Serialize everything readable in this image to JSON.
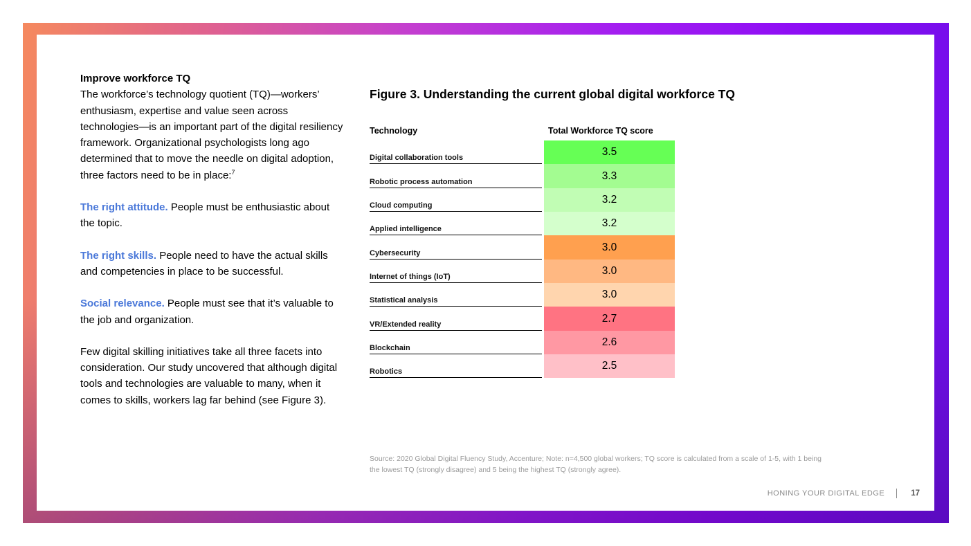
{
  "left": {
    "heading": "Improve workforce TQ",
    "intro": "The workforce’s technology quotient (TQ)—workers’ enthusiasm, expertise and value seen across technologies—is an important part of the digital resiliency framework. Organizational psychologists long ago determined that to move the needle on digital adoption, three factors need to be in place:",
    "intro_sup": "7",
    "factors": [
      {
        "lead": "The right attitude.",
        "text": " People must be enthusiastic about the topic."
      },
      {
        "lead": "The right skills.",
        "text": " People need to have the actual skills and competencies in place to be successful."
      },
      {
        "lead": "Social relevance.",
        "text": " People must see that it’s valuable to the job and organization."
      }
    ],
    "closing": "Few digital skilling initiatives take all three facets into consideration. Our study uncovered that although digital tools and technologies are valuable to many, when it comes to skills, workers lag far behind (see Figure 3)."
  },
  "figure": {
    "title": "Figure 3. Understanding the current global digital workforce TQ",
    "col_technology": "Technology",
    "col_score": "Total Workforce TQ score",
    "rows": [
      {
        "label": "Digital collaboration tools",
        "score": "3.5",
        "color": "#66ff55"
      },
      {
        "label": "Robotic process automation",
        "score": "3.3",
        "color": "#a3fc91"
      },
      {
        "label": "Cloud computing",
        "score": "3.2",
        "color": "#c1fdb4"
      },
      {
        "label": "Applied intelligence",
        "score": "3.2",
        "color": "#d4ffcc"
      },
      {
        "label": "Cybersecurity",
        "score": "3.0",
        "color": "#ffa04f"
      },
      {
        "label": "Internet of things (IoT)",
        "score": "3.0",
        "color": "#ffb882"
      },
      {
        "label": "Statistical analysis",
        "score": "3.0",
        "color": "#ffd5ae"
      },
      {
        "label": "VR/Extended reality",
        "score": "2.7",
        "color": "#ff7382"
      },
      {
        "label": "Blockchain",
        "score": "2.6",
        "color": "#ff98a3"
      },
      {
        "label": "Robotics",
        "score": "2.5",
        "color": "#ffc0c8"
      }
    ],
    "source": "Source: 2020 Global Digital Fluency Study, Accenture; Note: n=4,500 global workers; TQ score is calculated from a scale of 1-5, with 1 being the lowest TQ (strongly disagree) and 5 being the highest TQ (strongly agree)."
  },
  "footer": {
    "title": "HONING YOUR DIGITAL EDGE",
    "page_number": "17"
  }
}
